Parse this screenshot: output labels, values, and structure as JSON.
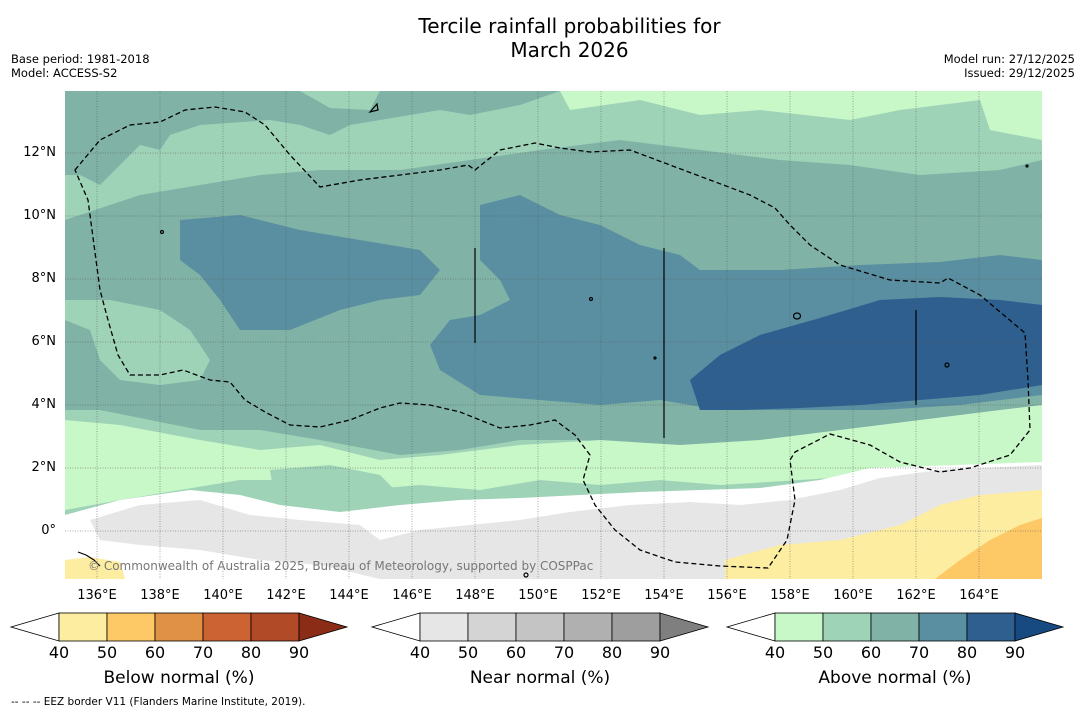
{
  "title_line1": "Tercile rainfall probabilities for",
  "title_line2": "March 2026",
  "base_period": "Base period: 1981-2018",
  "model": "Model: ACCESS-S2",
  "model_run": "Model run: 27/12/2025",
  "issued": "Issued: 29/12/2025",
  "copyright": "© Commonwealth of Australia 2025, Bureau of Meteorology, supported by COSPPac",
  "footnote": "-- -- -- EEZ border V11 (Flanders Marine Institute, 2019).",
  "lon_labels": [
    "136°E",
    "138°E",
    "140°E",
    "142°E",
    "144°E",
    "146°E",
    "148°E",
    "150°E",
    "152°E",
    "154°E",
    "156°E",
    "158°E",
    "160°E",
    "162°E",
    "164°E"
  ],
  "lat_labels": [
    "12°N",
    "10°N",
    "8°N",
    "6°N",
    "4°N",
    "2°N",
    "0°"
  ],
  "colorbars": [
    {
      "name": "below",
      "label": "Below normal (%)",
      "ticks": [
        "40",
        "50",
        "60",
        "70",
        "80",
        "90"
      ],
      "colors": [
        "#ffffff",
        "#fdeda1",
        "#fdc966",
        "#e09146",
        "#cc6332",
        "#b04a27",
        "#8b2d16"
      ]
    },
    {
      "name": "near",
      "label": "Near normal (%)",
      "ticks": [
        "40",
        "50",
        "60",
        "70",
        "80",
        "90"
      ],
      "colors": [
        "#ffffff",
        "#e6e6e6",
        "#d4d4d4",
        "#c4c4c4",
        "#b0b0b0",
        "#9e9e9e",
        "#7f7f7f"
      ]
    },
    {
      "name": "above",
      "label": "Above normal (%)",
      "ticks": [
        "40",
        "50",
        "60",
        "70",
        "80",
        "90"
      ],
      "colors": [
        "#ffffff",
        "#c8f7c8",
        "#9fd3b8",
        "#80b3a6",
        "#5a8fa1",
        "#2e5f8f",
        "#174a80"
      ]
    }
  ]
}
